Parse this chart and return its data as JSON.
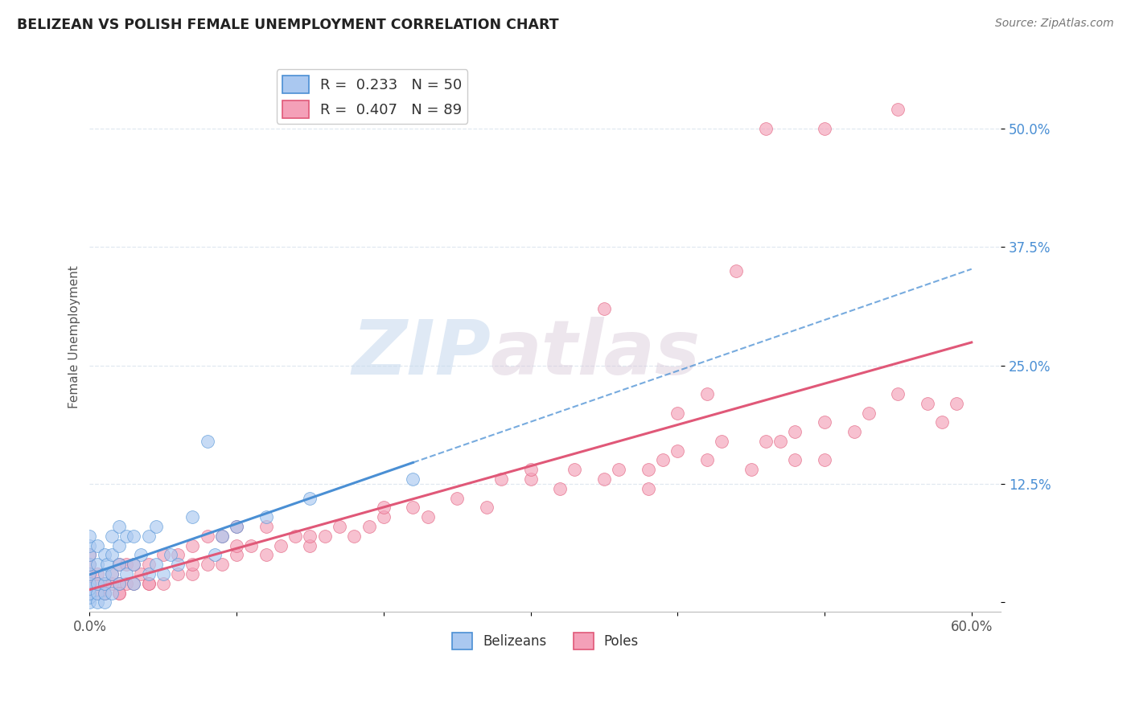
{
  "title": "BELIZEAN VS POLISH FEMALE UNEMPLOYMENT CORRELATION CHART",
  "source": "Source: ZipAtlas.com",
  "ylabel_label": "Female Unemployment",
  "xlim": [
    0.0,
    0.62
  ],
  "ylim": [
    -0.01,
    0.57
  ],
  "xtick_vals": [
    0.0,
    0.1,
    0.2,
    0.3,
    0.4,
    0.5,
    0.6
  ],
  "xtick_labels": [
    "0.0%",
    "",
    "",
    "",
    "",
    "",
    "60.0%"
  ],
  "ytick_vals": [
    0.0,
    0.125,
    0.25,
    0.375,
    0.5
  ],
  "ytick_labels": [
    "",
    "12.5%",
    "25.0%",
    "37.5%",
    "50.0%"
  ],
  "belizeans_color": "#aac8f0",
  "poles_color": "#f4a0b8",
  "belize_line_color": "#4a8fd4",
  "poles_line_color": "#e05878",
  "legend_r_belize": "R =  0.233   N = 50",
  "legend_r_poles": "R =  0.407   N = 89",
  "watermark_zip": "ZIP",
  "watermark_atlas": "atlas",
  "background_color": "#ffffff",
  "grid_color": "#e0e8f0",
  "belize_x": [
    0.0,
    0.0,
    0.0,
    0.0,
    0.0,
    0.0,
    0.0,
    0.0,
    0.0,
    0.0,
    0.005,
    0.005,
    0.005,
    0.005,
    0.005,
    0.01,
    0.01,
    0.01,
    0.01,
    0.01,
    0.012,
    0.015,
    0.015,
    0.015,
    0.015,
    0.02,
    0.02,
    0.02,
    0.02,
    0.025,
    0.025,
    0.03,
    0.03,
    0.03,
    0.035,
    0.04,
    0.04,
    0.045,
    0.045,
    0.05,
    0.055,
    0.06,
    0.07,
    0.08,
    0.085,
    0.09,
    0.1,
    0.12,
    0.15,
    0.22
  ],
  "belize_y": [
    0.0,
    0.005,
    0.01,
    0.015,
    0.02,
    0.03,
    0.04,
    0.05,
    0.06,
    0.07,
    0.0,
    0.01,
    0.02,
    0.04,
    0.06,
    0.0,
    0.01,
    0.02,
    0.03,
    0.05,
    0.04,
    0.01,
    0.03,
    0.05,
    0.07,
    0.02,
    0.04,
    0.06,
    0.08,
    0.03,
    0.07,
    0.02,
    0.04,
    0.07,
    0.05,
    0.03,
    0.07,
    0.04,
    0.08,
    0.03,
    0.05,
    0.04,
    0.09,
    0.17,
    0.05,
    0.07,
    0.08,
    0.09,
    0.11,
    0.13
  ],
  "poles_x": [
    0.0,
    0.0,
    0.0,
    0.0,
    0.0,
    0.005,
    0.005,
    0.005,
    0.01,
    0.01,
    0.015,
    0.015,
    0.02,
    0.02,
    0.02,
    0.025,
    0.025,
    0.03,
    0.03,
    0.035,
    0.04,
    0.04,
    0.05,
    0.05,
    0.06,
    0.06,
    0.07,
    0.07,
    0.08,
    0.08,
    0.09,
    0.09,
    0.1,
    0.1,
    0.11,
    0.12,
    0.12,
    0.13,
    0.14,
    0.15,
    0.16,
    0.17,
    0.18,
    0.19,
    0.2,
    0.22,
    0.23,
    0.25,
    0.27,
    0.28,
    0.3,
    0.32,
    0.33,
    0.35,
    0.36,
    0.38,
    0.39,
    0.4,
    0.42,
    0.43,
    0.45,
    0.46,
    0.48,
    0.5,
    0.52,
    0.53,
    0.55,
    0.57,
    0.58,
    0.59,
    0.35,
    0.4,
    0.42,
    0.44,
    0.46,
    0.48,
    0.5,
    0.3,
    0.2,
    0.15,
    0.1,
    0.07,
    0.04,
    0.02,
    0.01,
    0.47,
    0.5,
    0.55,
    0.38
  ],
  "poles_y": [
    0.01,
    0.02,
    0.03,
    0.04,
    0.05,
    0.01,
    0.02,
    0.03,
    0.01,
    0.02,
    0.02,
    0.03,
    0.01,
    0.02,
    0.04,
    0.02,
    0.04,
    0.02,
    0.04,
    0.03,
    0.02,
    0.04,
    0.02,
    0.05,
    0.03,
    0.05,
    0.03,
    0.06,
    0.04,
    0.07,
    0.04,
    0.07,
    0.05,
    0.08,
    0.06,
    0.05,
    0.08,
    0.06,
    0.07,
    0.06,
    0.07,
    0.08,
    0.07,
    0.08,
    0.09,
    0.1,
    0.09,
    0.11,
    0.1,
    0.13,
    0.13,
    0.12,
    0.14,
    0.13,
    0.14,
    0.14,
    0.15,
    0.16,
    0.15,
    0.17,
    0.14,
    0.17,
    0.15,
    0.19,
    0.18,
    0.2,
    0.22,
    0.21,
    0.19,
    0.21,
    0.31,
    0.2,
    0.22,
    0.35,
    0.5,
    0.18,
    0.15,
    0.14,
    0.1,
    0.07,
    0.06,
    0.04,
    0.02,
    0.01,
    0.01,
    0.17,
    0.5,
    0.52,
    0.12
  ]
}
